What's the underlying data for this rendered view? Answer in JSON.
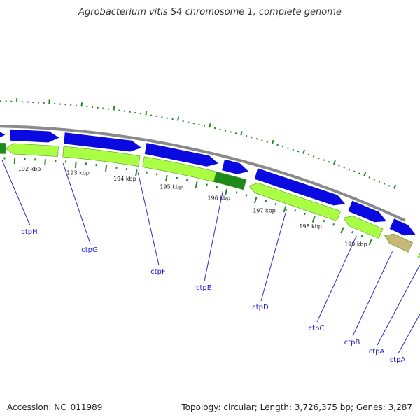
{
  "title": "Agrobacterium vitis S4 chromosome 1, complete genome",
  "footer": {
    "accession": "Accession: NC_011989",
    "summary": "Topology: circular; Length: 3,726,375 bp; Genes: 3,287"
  },
  "colors": {
    "backbone": "#8a8a8a",
    "cds_forward": "#0a0ae0",
    "gene_lime": "#aaff44",
    "gene_dark_green": "#1d8a1d",
    "gene_tan": "#c8b878",
    "tick": "#228822",
    "label": "#1a1acc"
  },
  "kbp_ticks": [
    "192 kbp",
    "193 kbp",
    "194 kbp",
    "195 kbp",
    "196 kbp",
    "197 kbp",
    "198 kbp",
    "199 kbp"
  ],
  "gene_labels": [
    "ctpH",
    "ctpG",
    "ctpF",
    "ctpE",
    "ctpD",
    "ctpC",
    "ctpB",
    "ctpA",
    "ctpA"
  ]
}
